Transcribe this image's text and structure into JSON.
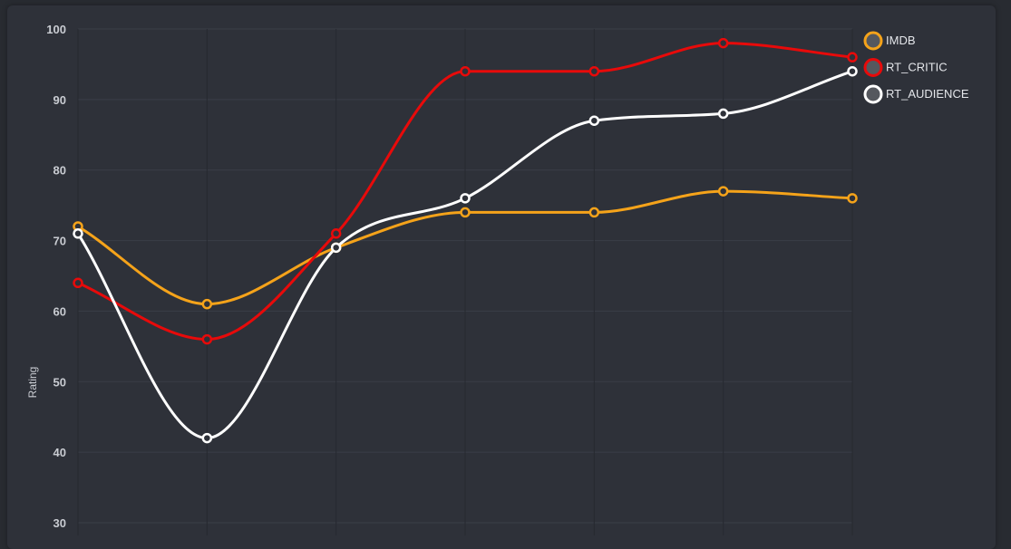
{
  "chart_data": {
    "type": "line",
    "title": "",
    "xlabel": "",
    "ylabel": "Rating",
    "ylim": [
      30,
      100
    ],
    "yticks": [
      100,
      90,
      80,
      70,
      60,
      50,
      40,
      30
    ],
    "x": [
      1,
      2,
      3,
      4,
      5,
      6,
      7
    ],
    "grid": true,
    "smooth": true,
    "legend_position": "top-right",
    "background": "#2e3139",
    "series": [
      {
        "name": "IMDB",
        "color": "#f5a31a",
        "values": [
          72,
          61,
          69,
          74,
          74,
          77,
          76
        ]
      },
      {
        "name": "RT_CRITIC",
        "color": "#e80a0a",
        "values": [
          64,
          56,
          71,
          94,
          94,
          98,
          96
        ]
      },
      {
        "name": "RT_AUDIENCE",
        "color": "#ffffff",
        "values": [
          71,
          42,
          69,
          76,
          87,
          88,
          94
        ]
      }
    ]
  }
}
